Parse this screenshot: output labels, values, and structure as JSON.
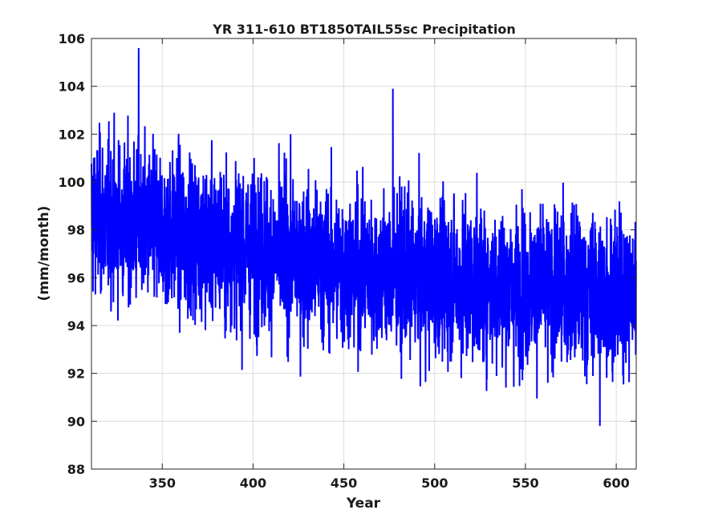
{
  "chart_data": {
    "type": "line",
    "title": "YR 311-610 BT1850TAIL55sc Precipitation",
    "xlabel": "Year",
    "ylabel": "(mm/month)",
    "xlim": [
      311,
      611
    ],
    "ylim": [
      88,
      106
    ],
    "xticks": [
      350,
      400,
      450,
      500,
      550,
      600
    ],
    "yticks": [
      88,
      90,
      92,
      94,
      96,
      98,
      100,
      102,
      104,
      106
    ],
    "grid": true,
    "series": [
      {
        "color": "#0000ff",
        "samples_per_year": 12,
        "x_start": 311,
        "x_end": 610.92,
        "approx_trend": [
          {
            "x": 311,
            "y": 98.6
          },
          {
            "x": 350,
            "y": 98.0
          },
          {
            "x": 400,
            "y": 97.2
          },
          {
            "x": 450,
            "y": 96.4
          },
          {
            "x": 500,
            "y": 95.9
          },
          {
            "x": 550,
            "y": 95.6
          },
          {
            "x": 610,
            "y": 95.3
          }
        ],
        "notable_peaks": [
          {
            "x": 337,
            "y": 105.6
          },
          {
            "x": 477,
            "y": 103.9
          },
          {
            "x": 591,
            "y": 89.8
          }
        ]
      }
    ]
  }
}
